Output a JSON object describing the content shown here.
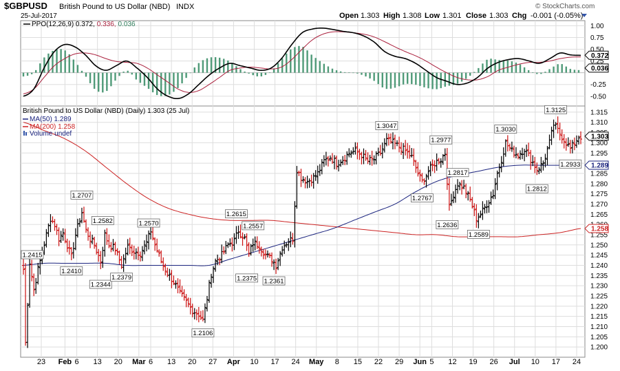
{
  "header": {
    "symbol": "$GBPUSD",
    "name": "British Pound to US Dollar (NBD)",
    "exchange": "INDX",
    "date": "25-Jul-2017",
    "open_label": "Open",
    "open": "1.303",
    "high_label": "High",
    "high": "1.308",
    "low_label": "Low",
    "low": "1.301",
    "close_label": "Close",
    "close": "1.303",
    "chg_label": "Chg",
    "chg": "-0.001 (-0.05%)",
    "brand": "© StockCharts.com"
  },
  "colors": {
    "up_bar": "#000000",
    "down_bar": "#cc1111",
    "ma50": "#1a237e",
    "ma200": "#cc2222",
    "ppo_line": "#000000",
    "signal_line": "#aa1f3c",
    "histogram": "#4f9a78",
    "grid": "#dddddd"
  },
  "chart_data": [
    {
      "type": "line",
      "panel": "indicator",
      "legend": {
        "ppo": "PPO(12,26,9) 0.372,",
        "signal": "0.336,",
        "hist": "0.036"
      },
      "ylim": [
        -0.65,
        1.05
      ],
      "y_ticks": [
        "1.00",
        "0.75",
        "0.50",
        "0.25",
        "-0.25",
        "-0.50"
      ],
      "current_labels": {
        "ppo": "0.372",
        "hist": "0.036"
      },
      "series": [
        {
          "key": "ppo",
          "values": [
            -0.5,
            -0.35,
            0.1,
            0.45,
            0.6,
            0.55,
            0.38,
            0.15,
            0.05,
            0.15,
            0.25,
            0.1,
            -0.1,
            -0.35,
            -0.5,
            -0.55,
            -0.45,
            -0.25,
            -0.05,
            0.1,
            0.2,
            0.15,
            0.1,
            0.05,
            0.1,
            0.3,
            0.6,
            0.85,
            0.93,
            0.95,
            0.92,
            0.88,
            0.85,
            0.78,
            0.65,
            0.45,
            0.35,
            0.3,
            0.2,
            0.05,
            -0.1,
            -0.18,
            -0.25,
            -0.22,
            -0.1,
            0.1,
            0.22,
            0.28,
            0.3,
            0.25,
            0.2,
            0.3,
            0.42,
            0.38,
            0.37
          ]
        },
        {
          "key": "signal",
          "values": [
            -0.45,
            -0.35,
            -0.1,
            0.15,
            0.3,
            0.4,
            0.42,
            0.38,
            0.3,
            0.24,
            0.22,
            0.2,
            0.1,
            -0.05,
            -0.2,
            -0.35,
            -0.42,
            -0.38,
            -0.25,
            -0.1,
            0.05,
            0.1,
            0.12,
            0.1,
            0.08,
            0.12,
            0.28,
            0.5,
            0.7,
            0.82,
            0.87,
            0.87,
            0.85,
            0.82,
            0.76,
            0.66,
            0.55,
            0.45,
            0.36,
            0.25,
            0.12,
            0.0,
            -0.1,
            -0.15,
            -0.15,
            -0.08,
            0.05,
            0.12,
            0.18,
            0.22,
            0.22,
            0.25,
            0.3,
            0.33,
            0.336
          ]
        }
      ]
    },
    {
      "type": "bar",
      "subtype": "ohlc",
      "panel": "price",
      "title": "British Pound to US Dollar (NBD) (Daily) 1.303 (25 Jul)",
      "legend": [
        "MA(50) 1.289",
        "MA(200) 1.258",
        "Volume undef"
      ],
      "ylim": [
        1.195,
        1.318
      ],
      "y_ticks": [
        "1.315",
        "1.310",
        "1.305",
        "1.300",
        "1.295",
        "1.290",
        "1.285",
        "1.280",
        "1.275",
        "1.270",
        "1.265",
        "1.260",
        "1.255",
        "1.250",
        "1.245",
        "1.240",
        "1.235",
        "1.230",
        "1.225",
        "1.220",
        "1.215",
        "1.210",
        "1.205",
        "1.200"
      ],
      "x_ticks": [
        "23",
        "Feb",
        "6",
        "13",
        "20",
        "Mar",
        "6",
        "13",
        "20",
        "27",
        "Apr",
        "10",
        "17",
        "24",
        "May",
        "8",
        "15",
        "22",
        "29",
        "Jun",
        "5",
        "12",
        "19",
        "26",
        "Jul",
        "10",
        "17",
        "24"
      ],
      "x_tick_pos": [
        0.05,
        0.13,
        0.17,
        0.24,
        0.31,
        0.38,
        0.42,
        0.49,
        0.56,
        0.63,
        0.7,
        0.77,
        0.84,
        0.91,
        0.98,
        1.05,
        1.12,
        1.19,
        1.26,
        1.33,
        1.37,
        1.44,
        1.51,
        1.58,
        1.65,
        1.72,
        1.79,
        1.86
      ],
      "current_labels": {
        "close": "1.303",
        "ma50": "1.289",
        "ma200": "1.258"
      },
      "annotations": [
        {
          "label": "1.2415",
          "i": 3,
          "y": 1.2415,
          "pos": "above"
        },
        {
          "label": "1.2707",
          "i": 28,
          "y": 1.2707,
          "pos": "above"
        },
        {
          "label": "1.2410",
          "i": 23,
          "y": 1.241,
          "pos": "below"
        },
        {
          "label": "1.2582",
          "i": 38,
          "y": 1.2582,
          "pos": "above"
        },
        {
          "label": "1.2344",
          "i": 37,
          "y": 1.2344,
          "pos": "below"
        },
        {
          "label": "1.2379",
          "i": 47,
          "y": 1.2379,
          "pos": "below"
        },
        {
          "label": "1.2570",
          "i": 60,
          "y": 1.257,
          "pos": "above"
        },
        {
          "label": "1.2106",
          "i": 86,
          "y": 1.2106,
          "pos": "below"
        },
        {
          "label": "1.2615",
          "i": 102,
          "y": 1.2615,
          "pos": "above"
        },
        {
          "label": "1.2557",
          "i": 110,
          "y": 1.2557,
          "pos": "above"
        },
        {
          "label": "1.2375",
          "i": 107,
          "y": 1.2375,
          "pos": "below"
        },
        {
          "label": "1.2361",
          "i": 120,
          "y": 1.2361,
          "pos": "below"
        },
        {
          "label": "1.3047",
          "i": 174,
          "y": 1.3047,
          "pos": "above"
        },
        {
          "label": "1.2767",
          "i": 191,
          "y": 1.2767,
          "pos": "below"
        },
        {
          "label": "1.2977",
          "i": 200,
          "y": 1.2977,
          "pos": "above"
        },
        {
          "label": "1.2817",
          "i": 208,
          "y": 1.2817,
          "pos": "above"
        },
        {
          "label": "1.2636",
          "i": 203,
          "y": 1.2636,
          "pos": "below"
        },
        {
          "label": "1.2589",
          "i": 218,
          "y": 1.2589,
          "pos": "below"
        },
        {
          "label": "1.3030",
          "i": 231,
          "y": 1.303,
          "pos": "above"
        },
        {
          "label": "1.2812",
          "i": 246,
          "y": 1.2812,
          "pos": "below"
        },
        {
          "label": "1.3125",
          "i": 255,
          "y": 1.3125,
          "pos": "above"
        },
        {
          "label": "1.2933",
          "i": 262,
          "y": 1.2933,
          "pos": "below"
        }
      ],
      "keyframes": [
        [
          0,
          1.238
        ],
        [
          1,
          1.202
        ],
        [
          3,
          1.2415
        ],
        [
          5,
          1.228
        ],
        [
          7,
          1.238
        ],
        [
          9,
          1.246
        ],
        [
          11,
          1.255
        ],
        [
          13,
          1.263
        ],
        [
          15,
          1.26
        ],
        [
          17,
          1.253
        ],
        [
          19,
          1.256
        ],
        [
          21,
          1.25
        ],
        [
          23,
          1.244
        ],
        [
          25,
          1.255
        ],
        [
          28,
          1.266
        ],
        [
          30,
          1.257
        ],
        [
          32,
          1.253
        ],
        [
          34,
          1.25
        ],
        [
          37,
          1.242
        ],
        [
          39,
          1.255
        ],
        [
          41,
          1.25
        ],
        [
          44,
          1.248
        ],
        [
          47,
          1.24
        ],
        [
          50,
          1.249
        ],
        [
          53,
          1.247
        ],
        [
          56,
          1.246
        ],
        [
          59,
          1.251
        ],
        [
          61,
          1.257
        ],
        [
          63,
          1.25
        ],
        [
          66,
          1.242
        ],
        [
          69,
          1.236
        ],
        [
          72,
          1.232
        ],
        [
          75,
          1.226
        ],
        [
          78,
          1.222
        ],
        [
          81,
          1.218
        ],
        [
          84,
          1.216
        ],
        [
          86,
          1.213
        ],
        [
          88,
          1.224
        ],
        [
          90,
          1.236
        ],
        [
          92,
          1.242
        ],
        [
          95,
          1.245
        ],
        [
          98,
          1.25
        ],
        [
          101,
          1.252
        ],
        [
          103,
          1.257
        ],
        [
          106,
          1.253
        ],
        [
          108,
          1.245
        ],
        [
          110,
          1.251
        ],
        [
          113,
          1.25
        ],
        [
          116,
          1.245
        ],
        [
          119,
          1.243
        ],
        [
          121,
          1.24
        ],
        [
          124,
          1.249
        ],
        [
          127,
          1.252
        ],
        [
          129,
          1.253
        ],
        [
          131,
          1.287
        ],
        [
          133,
          1.283
        ],
        [
          136,
          1.281
        ],
        [
          139,
          1.283
        ],
        [
          141,
          1.285
        ],
        [
          144,
          1.291
        ],
        [
          147,
          1.293
        ],
        [
          150,
          1.29
        ],
        [
          153,
          1.292
        ],
        [
          156,
          1.295
        ],
        [
          159,
          1.296
        ],
        [
          162,
          1.294
        ],
        [
          165,
          1.291
        ],
        [
          168,
          1.292
        ],
        [
          171,
          1.295
        ],
        [
          174,
          1.301
        ],
        [
          177,
          1.3
        ],
        [
          180,
          1.298
        ],
        [
          183,
          1.296
        ],
        [
          186,
          1.293
        ],
        [
          189,
          1.285
        ],
        [
          191,
          1.281
        ],
        [
          194,
          1.286
        ],
        [
          197,
          1.29
        ],
        [
          200,
          1.292
        ],
        [
          202,
          1.295
        ],
        [
          204,
          1.268
        ],
        [
          206,
          1.275
        ],
        [
          208,
          1.28
        ],
        [
          211,
          1.278
        ],
        [
          214,
          1.272
        ],
        [
          217,
          1.263
        ],
        [
          219,
          1.265
        ],
        [
          222,
          1.27
        ],
        [
          225,
          1.275
        ],
        [
          227,
          1.285
        ],
        [
          229,
          1.292
        ],
        [
          231,
          1.3
        ],
        [
          234,
          1.296
        ],
        [
          237,
          1.294
        ],
        [
          240,
          1.297
        ],
        [
          243,
          1.292
        ],
        [
          246,
          1.287
        ],
        [
          249,
          1.29
        ],
        [
          252,
          1.3
        ],
        [
          254,
          1.309
        ],
        [
          256,
          1.306
        ],
        [
          258,
          1.303
        ],
        [
          260,
          1.3
        ],
        [
          262,
          1.297
        ],
        [
          264,
          1.3
        ],
        [
          266,
          1.303
        ],
        [
          267,
          1.303
        ]
      ],
      "ma50_values": [
        1.24,
        1.241,
        1.241,
        1.241,
        1.241,
        1.24,
        1.24,
        1.24,
        1.24,
        1.24,
        1.243,
        1.246,
        1.249,
        1.252,
        1.255,
        1.258,
        1.262,
        1.266,
        1.27,
        1.276,
        1.281,
        1.284,
        1.286,
        1.288,
        1.289,
        1.289,
        1.289,
        1.289
      ],
      "ma200_values": [
        1.31,
        1.306,
        1.302,
        1.296,
        1.288,
        1.28,
        1.273,
        1.268,
        1.265,
        1.263,
        1.262,
        1.262,
        1.262,
        1.261,
        1.26,
        1.259,
        1.258,
        1.257,
        1.256,
        1.255,
        1.255,
        1.254,
        1.254,
        1.254,
        1.254,
        1.255,
        1.256,
        1.258
      ]
    }
  ]
}
